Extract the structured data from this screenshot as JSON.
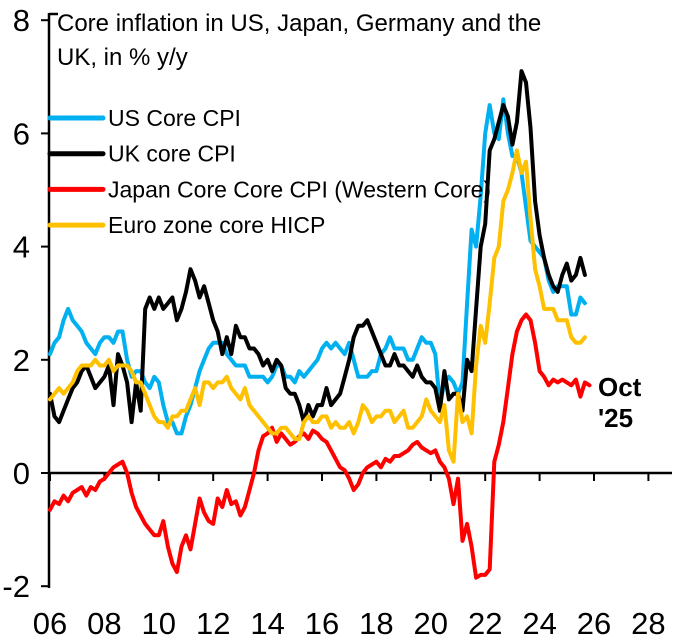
{
  "chart_data": {
    "type": "line",
    "title_lines": [
      "Core inflation in US, Japan, Germany and the",
      "UK, in % y/y"
    ],
    "grid": false,
    "legend_position": "top-left",
    "y_axis": {
      "range": [
        -2,
        8
      ],
      "ticks": [
        {
          "label": "8",
          "value": 8
        },
        {
          "label": "6",
          "value": 6
        },
        {
          "label": "4",
          "value": 4
        },
        {
          "label": "2",
          "value": 2
        },
        {
          "label": "0",
          "value": 0
        },
        {
          "label": "-2",
          "value": -2
        }
      ]
    },
    "x_axis": {
      "range_years": [
        2005.9,
        2029
      ],
      "ticks": [
        {
          "label": "06",
          "year": 2006
        },
        {
          "label": "08",
          "year": 2008
        },
        {
          "label": "10",
          "year": 2010
        },
        {
          "label": "12",
          "year": 2012
        },
        {
          "label": "14",
          "year": 2014
        },
        {
          "label": "16",
          "year": 2016
        },
        {
          "label": "18",
          "year": 2018
        },
        {
          "label": "20",
          "year": 2020
        },
        {
          "label": "22",
          "year": 2022
        },
        {
          "label": "24",
          "year": 2024
        },
        {
          "label": "26",
          "year": 2026
        },
        {
          "label": "28",
          "year": 2028
        }
      ]
    },
    "annotation": {
      "lines": [
        "Oct",
        "'25"
      ],
      "color": "#FF0000",
      "points_at": "last Japan data point"
    },
    "series": [
      {
        "name": "US Core CPI",
        "color": "#00B0F0",
        "start_year": 2006,
        "step_years": 0.1666667,
        "values": [
          2.1,
          2.3,
          2.4,
          2.7,
          2.9,
          2.7,
          2.6,
          2.5,
          2.3,
          2.2,
          2.1,
          2.3,
          2.4,
          2.4,
          2.3,
          2.5,
          2.5,
          2.0,
          1.7,
          1.8,
          1.8,
          1.6,
          1.5,
          1.7,
          1.6,
          1.2,
          0.9,
          0.9,
          0.7,
          0.7,
          1.0,
          1.2,
          1.5,
          1.8,
          2.0,
          2.2,
          2.3,
          2.3,
          2.3,
          2.1,
          2.0,
          1.9,
          1.9,
          1.9,
          1.7,
          1.7,
          1.7,
          1.7,
          1.6,
          1.7,
          1.9,
          1.9,
          1.7,
          1.7,
          1.6,
          1.8,
          1.7,
          1.8,
          1.9,
          2.0,
          2.2,
          2.3,
          2.2,
          2.3,
          2.2,
          2.1,
          2.3,
          2.0,
          1.7,
          1.7,
          1.7,
          1.8,
          1.8,
          2.1,
          2.2,
          2.4,
          2.2,
          2.2,
          2.2,
          2.0,
          2.0,
          2.2,
          2.4,
          2.3,
          2.3,
          2.1,
          1.2,
          1.6,
          1.7,
          1.6,
          1.4,
          1.6,
          3.0,
          4.3,
          4.0,
          4.9,
          6.0,
          6.5,
          6.0,
          5.9,
          6.6,
          6.0,
          5.6,
          5.6,
          5.3,
          4.7,
          4.1,
          4.0,
          3.9,
          3.8,
          3.4,
          3.2,
          3.3,
          3.3,
          3.3,
          2.8,
          2.8,
          3.1,
          3.0
        ]
      },
      {
        "name": "UK core CPI",
        "color": "#000000",
        "start_year": 2006,
        "step_years": 0.1666667,
        "values": [
          1.4,
          1.0,
          0.9,
          1.1,
          1.3,
          1.5,
          1.6,
          1.8,
          1.9,
          1.7,
          1.5,
          1.6,
          1.7,
          1.9,
          1.2,
          2.1,
          1.9,
          1.6,
          0.9,
          1.6,
          1.1,
          2.9,
          3.1,
          2.9,
          3.1,
          2.9,
          3.0,
          3.1,
          2.7,
          2.9,
          3.2,
          3.6,
          3.4,
          3.1,
          3.3,
          3.0,
          2.7,
          2.5,
          2.1,
          2.4,
          2.1,
          2.6,
          2.4,
          2.4,
          2.2,
          2.2,
          2.1,
          1.9,
          2.0,
          1.8,
          2.0,
          1.9,
          1.5,
          1.4,
          1.4,
          1.2,
          0.9,
          1.2,
          1.0,
          1.2,
          1.2,
          1.5,
          1.2,
          1.3,
          1.4,
          1.7,
          2.0,
          2.4,
          2.6,
          2.6,
          2.7,
          2.5,
          2.3,
          2.1,
          1.9,
          1.9,
          2.1,
          1.9,
          1.9,
          1.8,
          1.7,
          1.9,
          1.7,
          1.6,
          1.6,
          1.5,
          1.1,
          1.8,
          1.3,
          1.4,
          1.4,
          1.1,
          2.0,
          1.8,
          2.9,
          4.0,
          4.4,
          5.7,
          5.9,
          6.2,
          6.5,
          6.3,
          5.8,
          6.2,
          7.1,
          6.9,
          6.1,
          4.8,
          4.2,
          3.8,
          3.5,
          3.3,
          3.2,
          3.5,
          3.7,
          3.4,
          3.5,
          3.8,
          3.5
        ]
      },
      {
        "name": "Japan Core Core CPI (Western Core)",
        "color": "#FF0000",
        "start_year": 2006,
        "step_years": 0.1666667,
        "values": [
          -0.65,
          -0.5,
          -0.55,
          -0.4,
          -0.5,
          -0.35,
          -0.3,
          -0.25,
          -0.4,
          -0.25,
          -0.3,
          -0.15,
          -0.1,
          0.0,
          0.1,
          0.15,
          0.2,
          0.0,
          -0.35,
          -0.6,
          -0.75,
          -0.9,
          -1.0,
          -1.1,
          -1.1,
          -0.85,
          -1.3,
          -1.6,
          -1.75,
          -1.3,
          -1.1,
          -1.35,
          -0.9,
          -0.45,
          -0.7,
          -0.85,
          -0.9,
          -0.45,
          -0.6,
          -0.3,
          -0.55,
          -0.5,
          -0.75,
          -0.6,
          -0.3,
          0.0,
          0.4,
          0.65,
          0.7,
          0.8,
          0.55,
          0.7,
          0.6,
          0.5,
          0.55,
          0.65,
          0.7,
          0.6,
          0.75,
          0.7,
          0.6,
          0.55,
          0.4,
          0.25,
          0.1,
          0.05,
          -0.1,
          -0.3,
          -0.2,
          0.0,
          0.1,
          0.15,
          0.2,
          0.1,
          0.25,
          0.2,
          0.3,
          0.3,
          0.35,
          0.4,
          0.5,
          0.55,
          0.45,
          0.4,
          0.35,
          0.4,
          0.2,
          0.1,
          -0.1,
          -0.55,
          -0.1,
          -1.2,
          -0.9,
          -1.3,
          -1.85,
          -1.8,
          -1.8,
          -1.7,
          0.2,
          0.5,
          0.9,
          1.5,
          2.1,
          2.5,
          2.7,
          2.8,
          2.7,
          2.3,
          1.8,
          1.7,
          1.55,
          1.65,
          1.6,
          1.65,
          1.6,
          1.55,
          1.65,
          1.35,
          1.6,
          1.55
        ]
      },
      {
        "name": "Euro zone core HICP",
        "color": "#FFC000",
        "start_year": 2006,
        "step_years": 0.1666667,
        "values": [
          1.3,
          1.4,
          1.5,
          1.4,
          1.5,
          1.6,
          1.8,
          1.9,
          1.9,
          1.9,
          2.0,
          1.9,
          1.9,
          2.0,
          1.8,
          1.9,
          1.9,
          1.9,
          1.8,
          1.6,
          1.6,
          1.4,
          1.2,
          1.0,
          0.9,
          0.9,
          0.8,
          1.0,
          1.0,
          1.1,
          1.1,
          1.3,
          1.5,
          1.2,
          1.6,
          1.6,
          1.5,
          1.6,
          1.6,
          1.7,
          1.5,
          1.4,
          1.3,
          1.5,
          1.2,
          1.1,
          1.0,
          0.9,
          0.8,
          0.7,
          0.7,
          0.8,
          0.8,
          0.7,
          0.6,
          0.6,
          0.9,
          1.0,
          0.9,
          0.9,
          1.0,
          1.0,
          0.8,
          0.9,
          0.8,
          0.8,
          0.9,
          0.7,
          0.9,
          1.2,
          1.1,
          0.9,
          1.0,
          1.0,
          1.1,
          1.1,
          0.9,
          1.0,
          1.1,
          0.8,
          0.8,
          0.9,
          1.0,
          1.3,
          1.1,
          1.0,
          0.9,
          1.2,
          0.4,
          0.2,
          1.4,
          0.9,
          1.0,
          0.7,
          1.9,
          2.6,
          2.3,
          3.0,
          3.8,
          4.0,
          4.8,
          5.0,
          5.3,
          5.7,
          5.3,
          5.5,
          4.5,
          3.6,
          3.3,
          2.9,
          2.9,
          2.9,
          2.7,
          2.7,
          2.7,
          2.4,
          2.3,
          2.3,
          2.4
        ]
      }
    ]
  }
}
